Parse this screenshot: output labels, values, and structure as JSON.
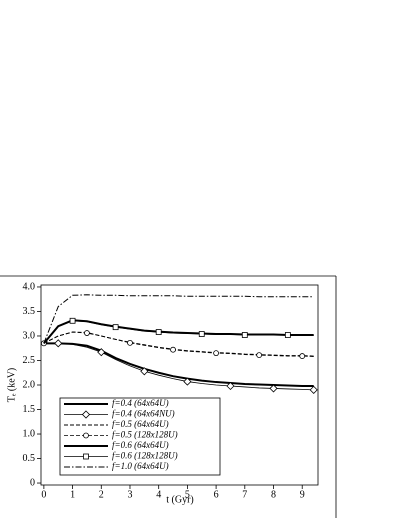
{
  "chart_data": {
    "type": "line",
    "xlabel": "t (Gyr)",
    "ylabel": "Tₑ (keV)",
    "x": [
      0,
      0.5,
      1,
      1.5,
      2,
      2.5,
      3,
      3.5,
      4,
      4.5,
      5,
      5.5,
      6,
      6.5,
      7,
      7.5,
      8,
      8.5,
      9,
      9.4
    ],
    "xlim": [
      -0.1,
      9.55
    ],
    "xticks": [
      0,
      1,
      2,
      3,
      4,
      5,
      6,
      7,
      8,
      9
    ],
    "ylim": [
      -0.04,
      4.04
    ],
    "yticks": [
      0,
      0.5,
      {
        "value": 1,
        "label": "1.0"
      },
      1.5,
      {
        "value": 2,
        "label": "2.0"
      },
      2.5,
      {
        "value": 3,
        "label": "3.0"
      },
      3.5,
      {
        "value": 4,
        "label": "4.0"
      }
    ],
    "legend": "lower left",
    "series": [
      {
        "name": "f=0.4 (64x64U)",
        "color": "#000000",
        "style": "solid",
        "linewidth": 2,
        "values": [
          2.85,
          2.85,
          2.84,
          2.8,
          2.7,
          2.55,
          2.43,
          2.33,
          2.25,
          2.18,
          2.13,
          2.09,
          2.06,
          2.04,
          2.02,
          2.01,
          2.0,
          1.99,
          1.98,
          1.98
        ]
      },
      {
        "name": "f=0.4 (64x64NU)",
        "color": "#000000",
        "style": "solid",
        "linewidth": 0.8,
        "marker": "diamond",
        "values": [
          2.85,
          2.85,
          2.83,
          2.77,
          2.67,
          2.52,
          2.39,
          2.28,
          2.2,
          2.13,
          2.07,
          2.03,
          2.0,
          1.98,
          1.96,
          1.94,
          1.93,
          1.92,
          1.91,
          1.9
        ]
      },
      {
        "name": "f=0.5 (64x64U)",
        "color": "#000000",
        "style": "dashed",
        "linewidth": 1,
        "values": [
          2.85,
          3.0,
          3.08,
          3.07,
          3.0,
          2.93,
          2.87,
          2.82,
          2.77,
          2.73,
          2.7,
          2.68,
          2.66,
          2.65,
          2.63,
          2.62,
          2.61,
          2.6,
          2.6,
          2.59
        ]
      },
      {
        "name": "f=0.5 (128x128U)",
        "color": "#000000",
        "style": "dashed",
        "linewidth": 0.8,
        "marker": "circle",
        "values": [
          2.85,
          3.0,
          3.08,
          3.06,
          3.0,
          2.93,
          2.86,
          2.81,
          2.76,
          2.72,
          2.69,
          2.67,
          2.65,
          2.64,
          2.62,
          2.61,
          2.6,
          2.59,
          2.59,
          2.58
        ]
      },
      {
        "name": "f=0.6 (64x64U)",
        "color": "#000000",
        "style": "solid",
        "linewidth": 2,
        "values": [
          2.85,
          3.2,
          3.32,
          3.3,
          3.24,
          3.19,
          3.15,
          3.11,
          3.09,
          3.07,
          3.06,
          3.05,
          3.04,
          3.04,
          3.03,
          3.03,
          3.03,
          3.02,
          3.02,
          3.02
        ]
      },
      {
        "name": "f=0.6 (128x128U)",
        "color": "#000000",
        "style": "solid",
        "linewidth": 0.8,
        "marker": "square",
        "values": [
          2.85,
          3.2,
          3.31,
          3.29,
          3.23,
          3.18,
          3.14,
          3.1,
          3.08,
          3.06,
          3.05,
          3.04,
          3.03,
          3.03,
          3.02,
          3.02,
          3.02,
          3.02,
          3.01,
          3.01
        ]
      },
      {
        "name": "f=1.0 (64x64U)",
        "color": "#000000",
        "style": "dashdot",
        "linewidth": 1,
        "values": [
          2.85,
          3.6,
          3.83,
          3.84,
          3.83,
          3.83,
          3.82,
          3.82,
          3.82,
          3.82,
          3.81,
          3.81,
          3.81,
          3.81,
          3.81,
          3.8,
          3.8,
          3.8,
          3.8,
          3.8
        ]
      }
    ]
  }
}
